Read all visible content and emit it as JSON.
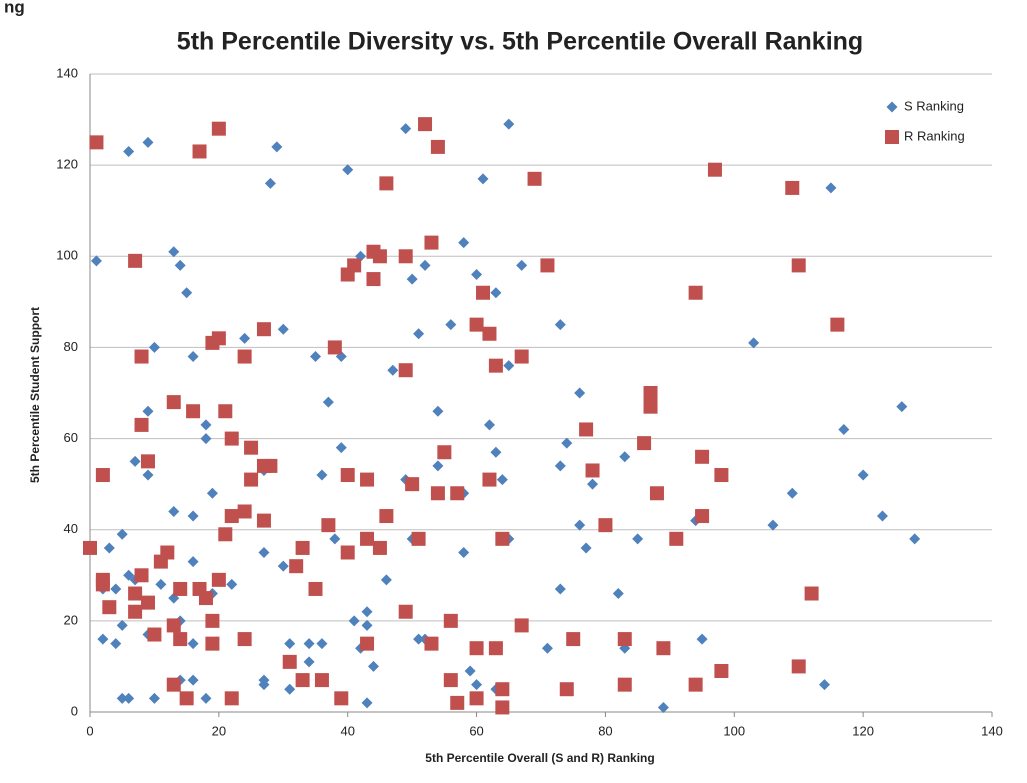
{
  "heading": "ng",
  "chart_data": {
    "type": "scatter",
    "title": "5th Percentile Diversity vs. 5th Percentile Overall Ranking",
    "xlabel": "5th Percentile Overall (S and R) Ranking",
    "ylabel": "5th Percentile Student Support",
    "xlim": [
      0,
      140
    ],
    "xticks": [
      0,
      20,
      40,
      60,
      80,
      100,
      120,
      140
    ],
    "ylim": [
      0,
      140
    ],
    "yticks": [
      0,
      20,
      40,
      60,
      80,
      100,
      120,
      140
    ],
    "grid": true,
    "legend": "upper right",
    "series": [
      {
        "name": "S Ranking",
        "color": "#4f81bd",
        "marker": "diamond",
        "x": [
          1,
          6,
          9,
          29,
          28,
          40,
          49,
          65,
          61,
          115,
          13,
          14,
          15,
          42,
          52,
          58,
          60,
          50,
          63,
          67,
          10,
          16,
          24,
          30,
          35,
          39,
          47,
          51,
          56,
          65,
          73,
          103,
          9,
          18,
          18,
          37,
          54,
          62,
          76,
          117,
          126,
          7,
          9,
          19,
          27,
          36,
          39,
          49,
          54,
          58,
          63,
          64,
          73,
          74,
          78,
          83,
          109,
          120,
          13,
          16,
          3,
          5,
          27,
          38,
          50,
          65,
          58,
          76,
          77,
          85,
          95,
          94,
          106,
          123,
          128,
          2,
          4,
          6,
          7,
          11,
          13,
          14,
          16,
          19,
          22,
          30,
          41,
          43,
          43,
          46,
          73,
          82,
          2,
          4,
          5,
          9,
          14,
          16,
          31,
          34,
          36,
          42,
          52,
          51,
          71,
          83,
          95,
          5,
          6,
          10,
          14,
          16,
          18,
          27,
          27,
          31,
          34,
          43,
          44,
          59,
          60,
          63,
          89,
          114
        ],
        "values": [
          99,
          123,
          125,
          124,
          116,
          119,
          128,
          129,
          117,
          115,
          101,
          98,
          92,
          100,
          98,
          103,
          96,
          95,
          92,
          98,
          80,
          78,
          82,
          84,
          78,
          78,
          75,
          83,
          85,
          76,
          85,
          81,
          66,
          63,
          60,
          68,
          66,
          63,
          70,
          62,
          67,
          55,
          52,
          48,
          53,
          52,
          58,
          51,
          54,
          48,
          57,
          51,
          54,
          59,
          50,
          56,
          48,
          52,
          44,
          43,
          36,
          39,
          35,
          38,
          38,
          38,
          35,
          41,
          36,
          38,
          43,
          42,
          41,
          43,
          38,
          27,
          27,
          30,
          29,
          28,
          25,
          20,
          33,
          26,
          28,
          32,
          20,
          22,
          19,
          29,
          27,
          26,
          16,
          15,
          19,
          17,
          16,
          15,
          15,
          15,
          15,
          14,
          16,
          16,
          14,
          14,
          16,
          3,
          3,
          3,
          7,
          7,
          3,
          7,
          6,
          5,
          11,
          2,
          10,
          9,
          6,
          5,
          1,
          6
        ]
      },
      {
        "name": "R Ranking",
        "color": "#c0504d",
        "marker": "square",
        "x": [
          1,
          17,
          20,
          46,
          52,
          54,
          69,
          97,
          109,
          7,
          40,
          41,
          44,
          44,
          45,
          49,
          53,
          61,
          62,
          60,
          71,
          94,
          110,
          116,
          8,
          19,
          20,
          24,
          27,
          38,
          49,
          63,
          67,
          8,
          13,
          16,
          21,
          22,
          77,
          87,
          87,
          86,
          2,
          9,
          25,
          25,
          27,
          28,
          40,
          43,
          55,
          54,
          57,
          62,
          78,
          88,
          95,
          98,
          0,
          12,
          11,
          21,
          22,
          24,
          27,
          33,
          37,
          40,
          43,
          45,
          46,
          50,
          51,
          64,
          80,
          91,
          95,
          2,
          2,
          3,
          7,
          7,
          8,
          9,
          14,
          17,
          18,
          19,
          20,
          35,
          56,
          67,
          112,
          10,
          13,
          14,
          19,
          24,
          32,
          43,
          49,
          53,
          60,
          63,
          75,
          83,
          89,
          13,
          15,
          22,
          31,
          33,
          36,
          39,
          56,
          57,
          60,
          64,
          64,
          74,
          83,
          94,
          98,
          110
        ],
        "values": [
          125,
          123,
          128,
          116,
          129,
          124,
          117,
          119,
          115,
          99,
          96,
          98,
          101,
          95,
          100,
          100,
          103,
          92,
          83,
          85,
          98,
          92,
          98,
          85,
          78,
          81,
          82,
          78,
          84,
          80,
          75,
          76,
          78,
          63,
          68,
          66,
          66,
          60,
          62,
          70,
          67,
          59,
          52,
          55,
          58,
          51,
          54,
          54,
          52,
          51,
          57,
          48,
          48,
          51,
          53,
          48,
          56,
          52,
          36,
          35,
          33,
          39,
          43,
          44,
          42,
          36,
          41,
          35,
          38,
          36,
          43,
          50,
          38,
          38,
          41,
          38,
          43,
          29,
          28,
          23,
          26,
          22,
          30,
          24,
          27,
          27,
          25,
          20,
          29,
          27,
          20,
          19,
          26,
          17,
          19,
          16,
          15,
          16,
          32,
          15,
          22,
          15,
          14,
          14,
          16,
          16,
          14,
          6,
          3,
          3,
          11,
          7,
          7,
          3,
          7,
          2,
          3,
          5,
          1,
          5,
          6,
          6,
          9,
          10
        ]
      }
    ]
  }
}
